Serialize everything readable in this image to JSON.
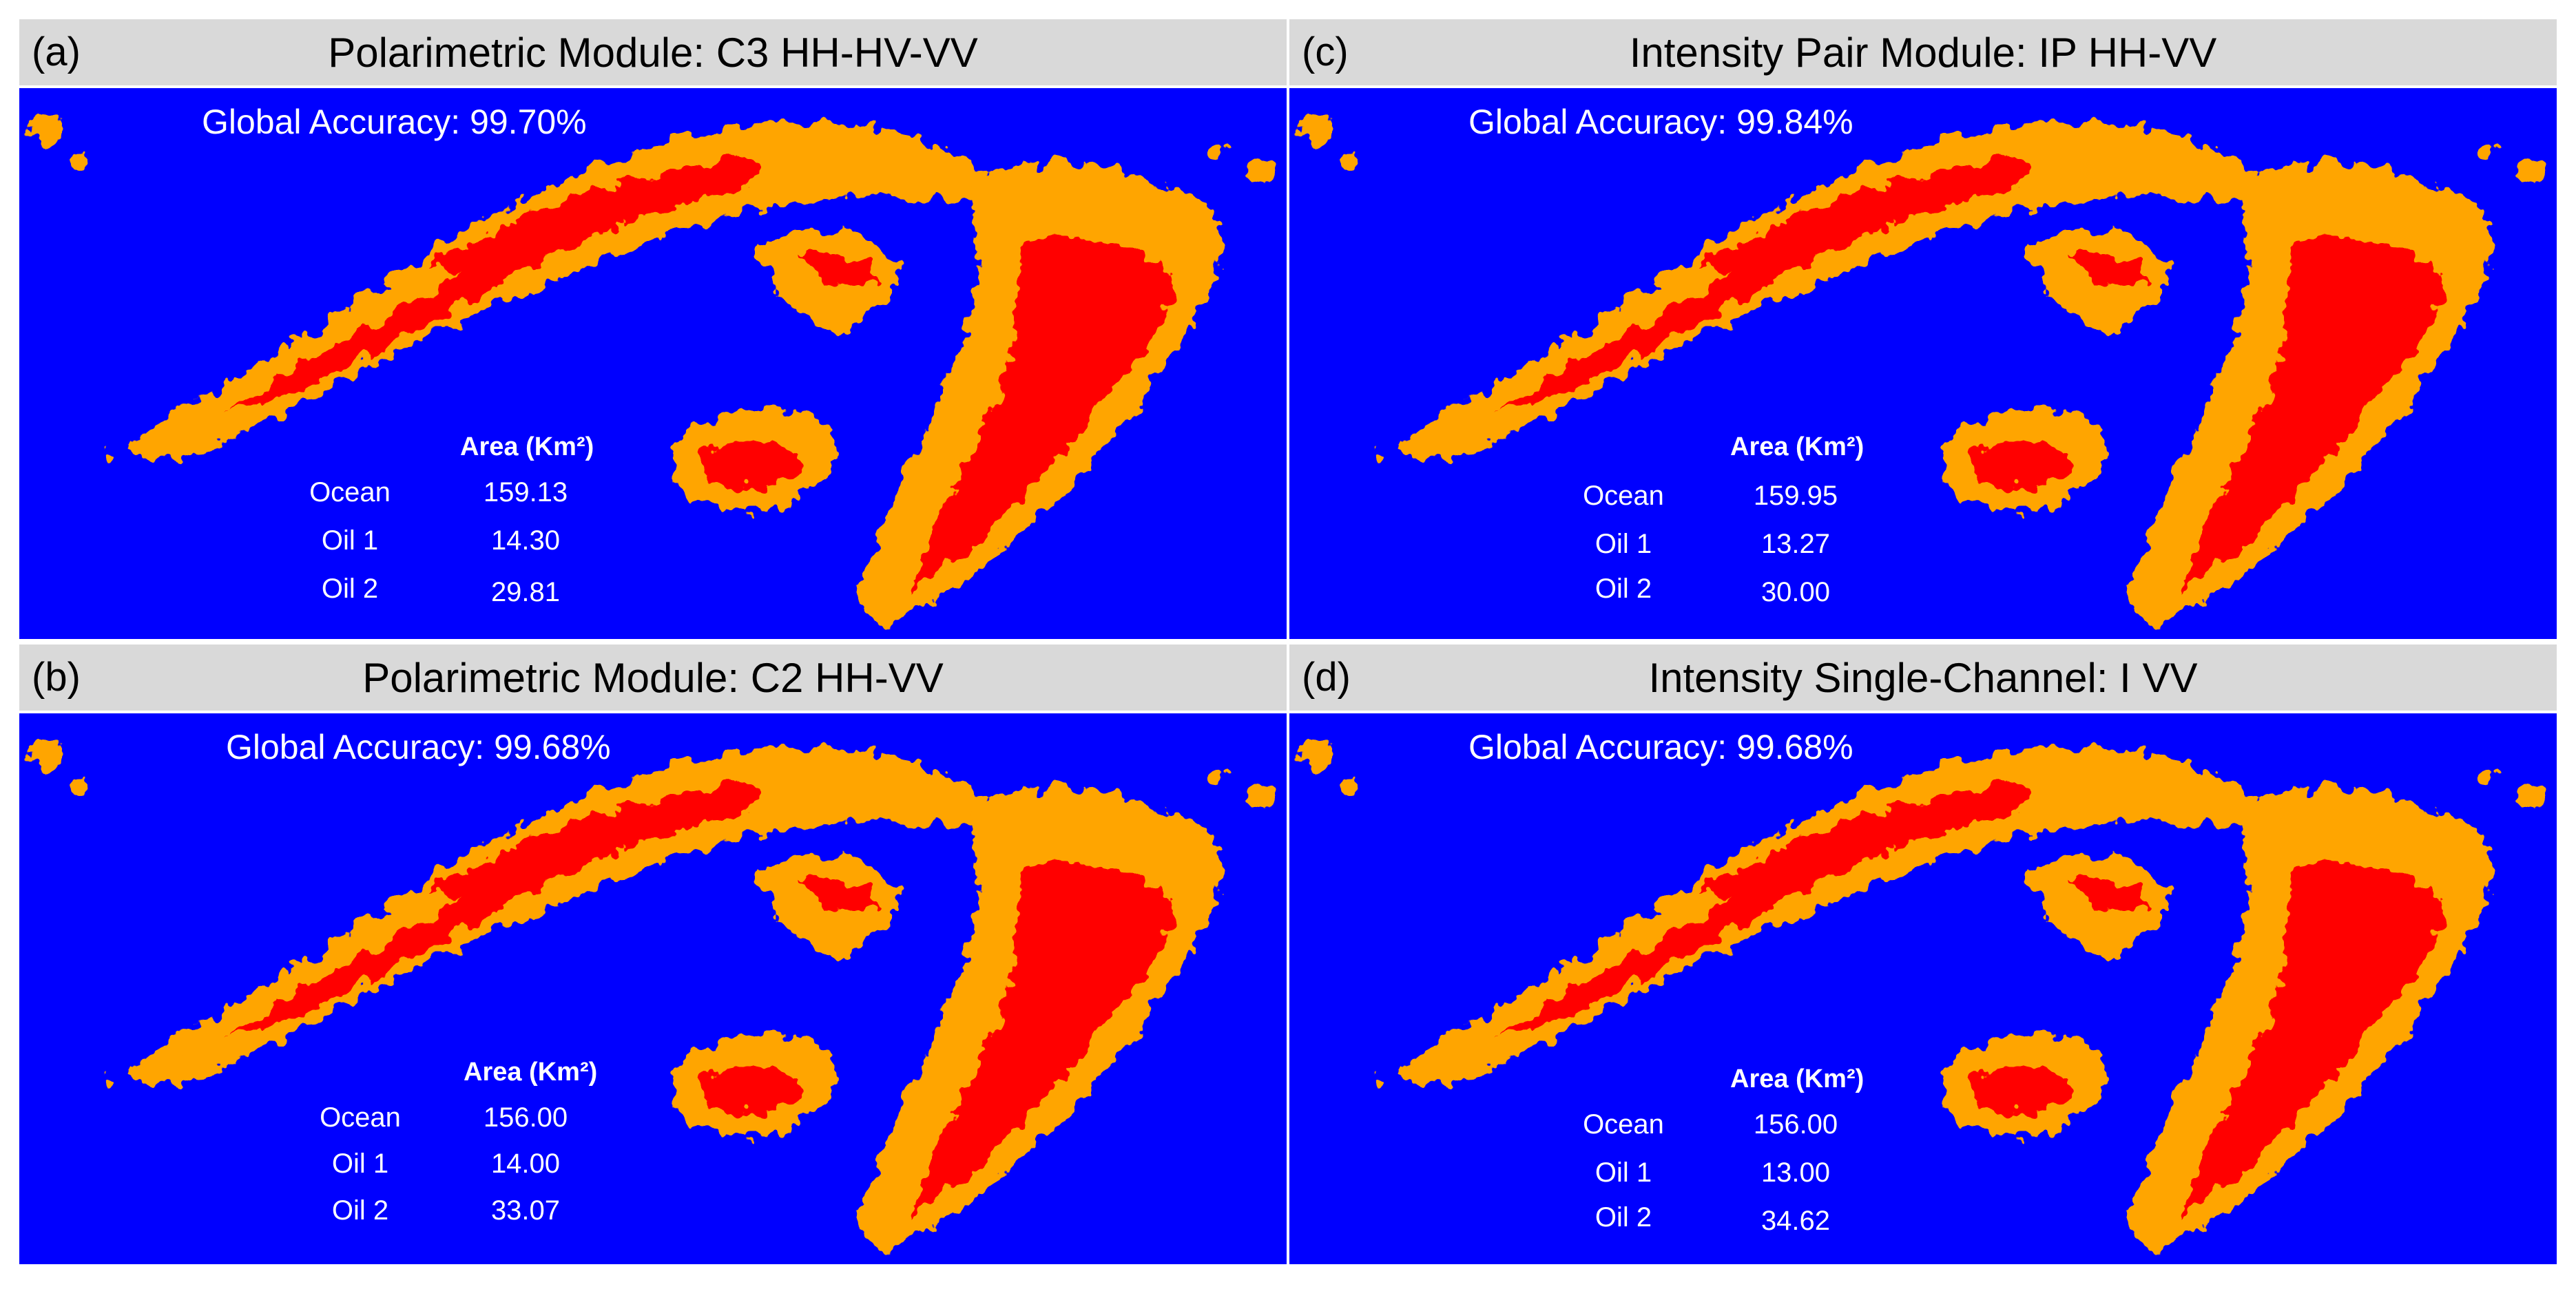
{
  "colors": {
    "ocean": "#0000ff",
    "oil_1": "#ff0000",
    "oil_2": "#ffa500",
    "header_bg": "#d9d9d9"
  },
  "area_header": "Area (Km²)",
  "panels": [
    {
      "letter": "(a)",
      "title": "Polarimetric Module: C3 HH-HV-VV",
      "global_accuracy": "Global Accuracy: 99.70%",
      "rows": [
        {
          "label": "Ocean",
          "value": "159.13"
        },
        {
          "label": "Oil 1",
          "value": "14.30"
        },
        {
          "label": "Oil 2",
          "value": "29.81"
        }
      ]
    },
    {
      "letter": "(b)",
      "title": "Polarimetric Module: C2 HH-VV",
      "global_accuracy": "Global Accuracy: 99.68%",
      "rows": [
        {
          "label": "Ocean",
          "value": "156.00"
        },
        {
          "label": "Oil 1",
          "value": "14.00"
        },
        {
          "label": "Oil 2",
          "value": "33.07"
        }
      ]
    },
    {
      "letter": "(c)",
      "title": "Intensity Pair Module:  IP HH-VV",
      "global_accuracy": "Global Accuracy: 99.84%",
      "rows": [
        {
          "label": "Ocean",
          "value": "159.95"
        },
        {
          "label": "Oil 1",
          "value": "13.27"
        },
        {
          "label": "Oil 2",
          "value": "30.00"
        }
      ]
    },
    {
      "letter": "(d)",
      "title": "Intensity Single-Channel: I VV",
      "global_accuracy": "Global Accuracy: 99.68%",
      "rows": [
        {
          "label": "Ocean",
          "value": "156.00"
        },
        {
          "label": "Oil 1",
          "value": "13.00"
        },
        {
          "label": "Oil 2",
          "value": "34.62"
        }
      ]
    }
  ]
}
